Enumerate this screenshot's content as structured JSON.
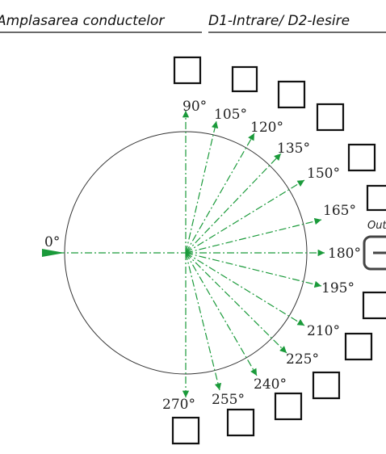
{
  "title_left": "Amplasarea conductelor",
  "title_right": "D1-Intrare/ D2-Iesire",
  "inlet_label": "0°",
  "outlet_label": "Outlet",
  "outlet_symbol": "−",
  "angles": [
    {
      "id": "90",
      "label": "90°"
    },
    {
      "id": "105",
      "label": "105°"
    },
    {
      "id": "120",
      "label": "120°"
    },
    {
      "id": "135",
      "label": "135°"
    },
    {
      "id": "150",
      "label": "150°"
    },
    {
      "id": "165",
      "label": "165°"
    },
    {
      "id": "180",
      "label": "180°"
    },
    {
      "id": "195",
      "label": "195°"
    },
    {
      "id": "210",
      "label": "210°"
    },
    {
      "id": "225",
      "label": "225°"
    },
    {
      "id": "240",
      "label": "240°"
    },
    {
      "id": "255",
      "label": "255°"
    },
    {
      "id": "270",
      "label": "270°"
    }
  ],
  "colors": {
    "axis": "#1a9a3a",
    "circle": "#333333",
    "box": "#111111"
  }
}
